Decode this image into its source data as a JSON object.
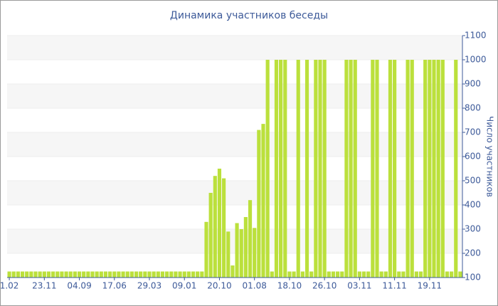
{
  "chart_data": {
    "type": "bar",
    "title": "Динамика участников беседы",
    "y_label": "Число участников",
    "categories": [
      "1.02",
      null,
      null,
      null,
      null,
      null,
      null,
      null,
      "23.11",
      null,
      null,
      null,
      null,
      null,
      null,
      null,
      "04.09",
      null,
      null,
      null,
      null,
      null,
      null,
      null,
      "17.06",
      null,
      null,
      null,
      null,
      null,
      null,
      null,
      "29.03",
      null,
      null,
      null,
      null,
      null,
      null,
      null,
      "09.01",
      null,
      null,
      null,
      null,
      null,
      null,
      null,
      "20.10",
      null,
      null,
      null,
      null,
      null,
      null,
      null,
      "01.08",
      null,
      null,
      null,
      null,
      null,
      null,
      null,
      "18.10",
      null,
      null,
      null,
      null,
      null,
      null,
      null,
      "26.10",
      null,
      null,
      null,
      null,
      null,
      null,
      null,
      "03.11",
      null,
      null,
      null,
      null,
      null,
      null,
      null,
      "11.11",
      null,
      null,
      null,
      null,
      null,
      null,
      null,
      "19.11",
      null,
      null,
      null,
      null,
      null,
      null,
      null
    ],
    "values": [
      125,
      125,
      125,
      125,
      125,
      125,
      125,
      125,
      125,
      125,
      125,
      125,
      125,
      125,
      125,
      125,
      125,
      125,
      125,
      125,
      125,
      125,
      125,
      125,
      125,
      125,
      125,
      125,
      125,
      125,
      125,
      125,
      125,
      125,
      125,
      125,
      125,
      125,
      125,
      125,
      125,
      125,
      125,
      125,
      125,
      330,
      450,
      520,
      550,
      510,
      290,
      150,
      325,
      300,
      350,
      420,
      305,
      710,
      735,
      1000,
      125,
      1000,
      1000,
      1000,
      125,
      125,
      1000,
      125,
      1000,
      125,
      1000,
      1000,
      1000,
      125,
      125,
      125,
      125,
      1000,
      1000,
      1000,
      125,
      125,
      125,
      1000,
      1000,
      125,
      125,
      1000,
      1000,
      125,
      125,
      1000,
      1000,
      125,
      125,
      1000,
      1000,
      1000,
      1000,
      1000,
      125,
      125,
      1000,
      125
    ],
    "color": "#bbe03c",
    "ylim": [
      100,
      1100
    ],
    "yticks": [
      100,
      200,
      300,
      400,
      500,
      600,
      700,
      800,
      900,
      1000,
      1100
    ],
    "grid": true
  }
}
